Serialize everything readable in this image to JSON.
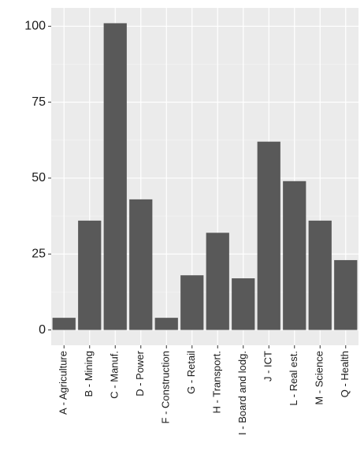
{
  "chart_data": {
    "type": "bar",
    "categories": [
      "A - Agriculture",
      "B - Mining",
      "C - Manuf.",
      "D - Power",
      "F - Construction",
      "G - Retail",
      "H - Transport.",
      "I - Board and lodg.",
      "J - ICT",
      "L - Real est.",
      "M - Science",
      "Q - Health"
    ],
    "values": [
      4,
      36,
      101,
      43,
      4,
      18,
      32,
      17,
      62,
      49,
      36,
      23
    ],
    "color": "#595959",
    "ylim": [
      -5.05,
      106.05
    ],
    "yticks": [
      0,
      25,
      50,
      75,
      100
    ],
    "grid": true
  }
}
